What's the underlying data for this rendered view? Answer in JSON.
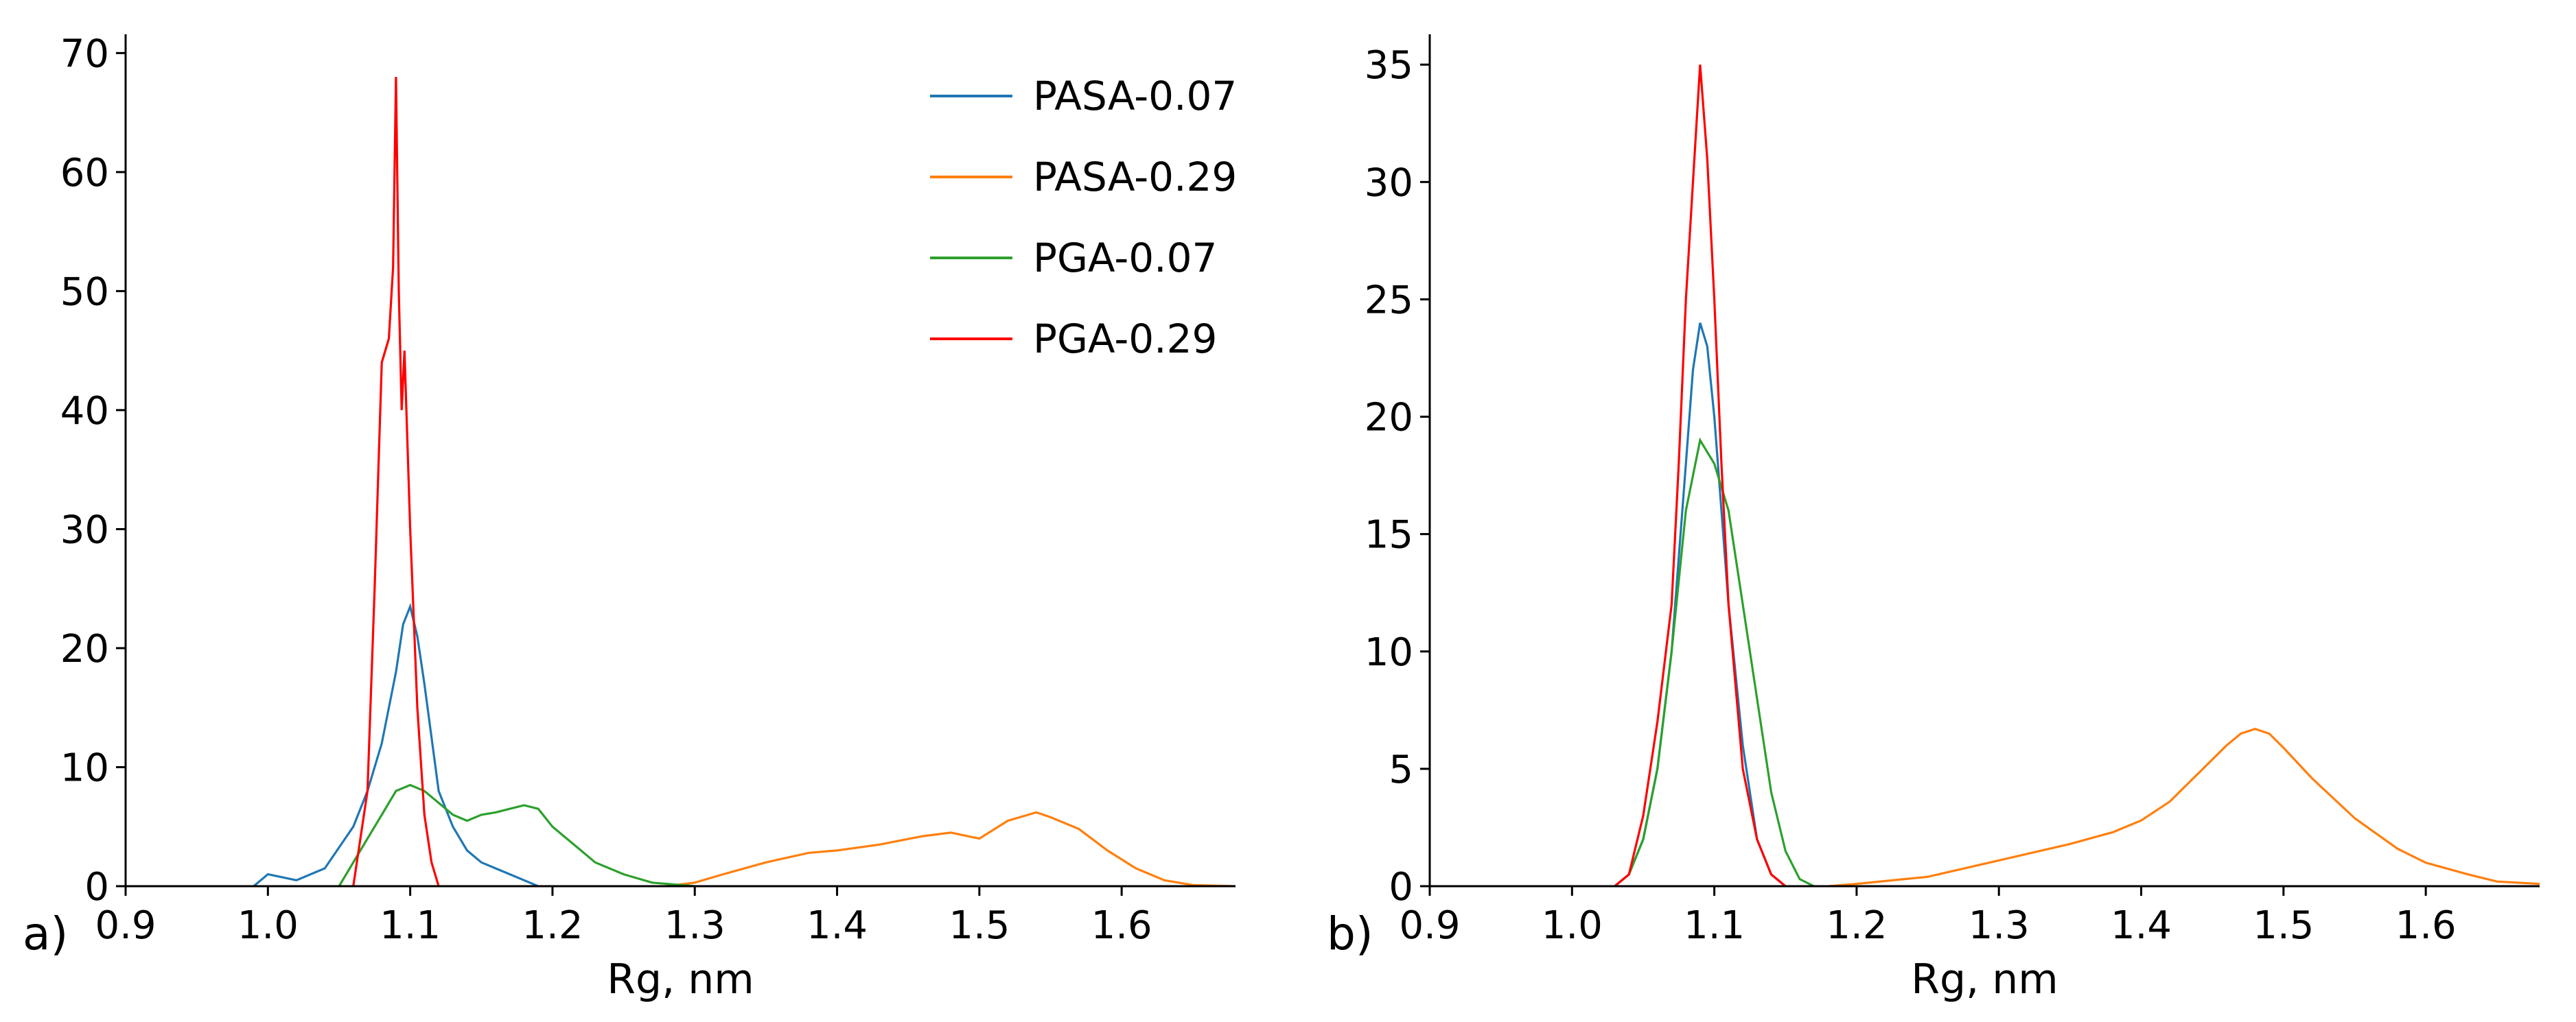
{
  "chart_data": [
    {
      "type": "line",
      "panel_label": "a)",
      "xlabel": "Rg, nm",
      "ylabel": "",
      "xlim": [
        0.9,
        1.68
      ],
      "ylim": [
        0,
        71
      ],
      "xticks": [
        "0.9",
        "1.0",
        "1.1",
        "1.2",
        "1.3",
        "1.4",
        "1.5",
        "1.6"
      ],
      "yticks": [
        "0",
        "10",
        "20",
        "30",
        "40",
        "50",
        "60",
        "70"
      ],
      "legend": "top-right",
      "series": [
        {
          "name": "PASA-0.07",
          "color": "#1f77b4",
          "x": [
            0.99,
            1.0,
            1.02,
            1.04,
            1.06,
            1.07,
            1.08,
            1.09,
            1.095,
            1.1,
            1.105,
            1.11,
            1.12,
            1.13,
            1.14,
            1.15,
            1.16,
            1.17,
            1.18,
            1.19
          ],
          "y": [
            0,
            1,
            0.5,
            1.5,
            5,
            8,
            12,
            18,
            22,
            23.5,
            21,
            17,
            8,
            5,
            3,
            2,
            1.5,
            1,
            0.5,
            0
          ]
        },
        {
          "name": "PASA-0.29",
          "color": "#ff7f0e",
          "x": [
            1.28,
            1.3,
            1.32,
            1.35,
            1.38,
            1.4,
            1.43,
            1.46,
            1.48,
            1.5,
            1.52,
            1.54,
            1.55,
            1.57,
            1.59,
            1.61,
            1.63,
            1.65,
            1.68
          ],
          "y": [
            0,
            0.3,
            1,
            2,
            2.8,
            3,
            3.5,
            4.2,
            4.5,
            4,
            5.5,
            6.2,
            5.8,
            4.8,
            3,
            1.5,
            0.5,
            0.1,
            0
          ]
        },
        {
          "name": "PGA-0.07",
          "color": "#2ca02c",
          "x": [
            1.05,
            1.06,
            1.07,
            1.08,
            1.09,
            1.1,
            1.11,
            1.12,
            1.13,
            1.14,
            1.15,
            1.16,
            1.17,
            1.18,
            1.19,
            1.2,
            1.21,
            1.22,
            1.23,
            1.25,
            1.27,
            1.3
          ],
          "y": [
            0,
            2,
            4,
            6,
            8,
            8.5,
            8,
            7,
            6,
            5.5,
            6,
            6.2,
            6.5,
            6.8,
            6.5,
            5,
            4,
            3,
            2,
            1,
            0.3,
            0
          ]
        },
        {
          "name": "PGA-0.29",
          "color": "#ff0000",
          "x": [
            1.06,
            1.07,
            1.075,
            1.08,
            1.085,
            1.088,
            1.09,
            1.092,
            1.094,
            1.096,
            1.1,
            1.105,
            1.11,
            1.115,
            1.12
          ],
          "y": [
            0,
            8,
            25,
            44,
            46,
            52,
            68,
            50,
            40,
            45,
            30,
            15,
            6,
            2,
            0
          ]
        }
      ]
    },
    {
      "type": "line",
      "panel_label": "b)",
      "xlabel": "Rg, nm",
      "ylabel": "",
      "xlim": [
        0.9,
        1.68
      ],
      "ylim": [
        0,
        36
      ],
      "xticks": [
        "0.9",
        "1.0",
        "1.1",
        "1.2",
        "1.3",
        "1.4",
        "1.5",
        "1.6"
      ],
      "yticks": [
        "0",
        "5",
        "10",
        "15",
        "20",
        "25",
        "30",
        "35"
      ],
      "series": [
        {
          "name": "PASA-0.07",
          "color": "#1f77b4",
          "x": [
            1.03,
            1.04,
            1.05,
            1.06,
            1.07,
            1.08,
            1.085,
            1.09,
            1.095,
            1.1,
            1.105,
            1.11,
            1.12,
            1.13,
            1.14,
            1.15
          ],
          "y": [
            0,
            0.5,
            2,
            5,
            10,
            18,
            22,
            24,
            23,
            20,
            16,
            12,
            6,
            2,
            0.5,
            0
          ]
        },
        {
          "name": "PASA-0.29",
          "color": "#ff7f0e",
          "x": [
            1.18,
            1.2,
            1.25,
            1.3,
            1.35,
            1.38,
            1.4,
            1.42,
            1.44,
            1.46,
            1.47,
            1.48,
            1.49,
            1.5,
            1.52,
            1.55,
            1.58,
            1.6,
            1.63,
            1.65,
            1.68
          ],
          "y": [
            0,
            0.1,
            0.4,
            1.1,
            1.8,
            2.3,
            2.8,
            3.6,
            4.8,
            6,
            6.5,
            6.7,
            6.5,
            5.9,
            4.6,
            2.9,
            1.6,
            1,
            0.5,
            0.2,
            0.1
          ]
        },
        {
          "name": "PGA-0.07",
          "color": "#2ca02c",
          "x": [
            1.03,
            1.04,
            1.05,
            1.06,
            1.07,
            1.08,
            1.09,
            1.1,
            1.11,
            1.12,
            1.13,
            1.14,
            1.15,
            1.16,
            1.17
          ],
          "y": [
            0,
            0.5,
            2,
            5,
            10,
            16,
            19,
            18,
            16,
            12,
            8,
            4,
            1.5,
            0.3,
            0
          ]
        },
        {
          "name": "PGA-0.29",
          "color": "#ff0000",
          "x": [
            1.03,
            1.04,
            1.05,
            1.06,
            1.07,
            1.075,
            1.08,
            1.085,
            1.09,
            1.095,
            1.1,
            1.105,
            1.11,
            1.12,
            1.13,
            1.14,
            1.15
          ],
          "y": [
            0,
            0.5,
            3,
            7,
            12,
            18,
            25,
            30,
            35,
            31,
            25,
            18,
            12,
            5,
            2,
            0.5,
            0
          ]
        }
      ]
    }
  ]
}
